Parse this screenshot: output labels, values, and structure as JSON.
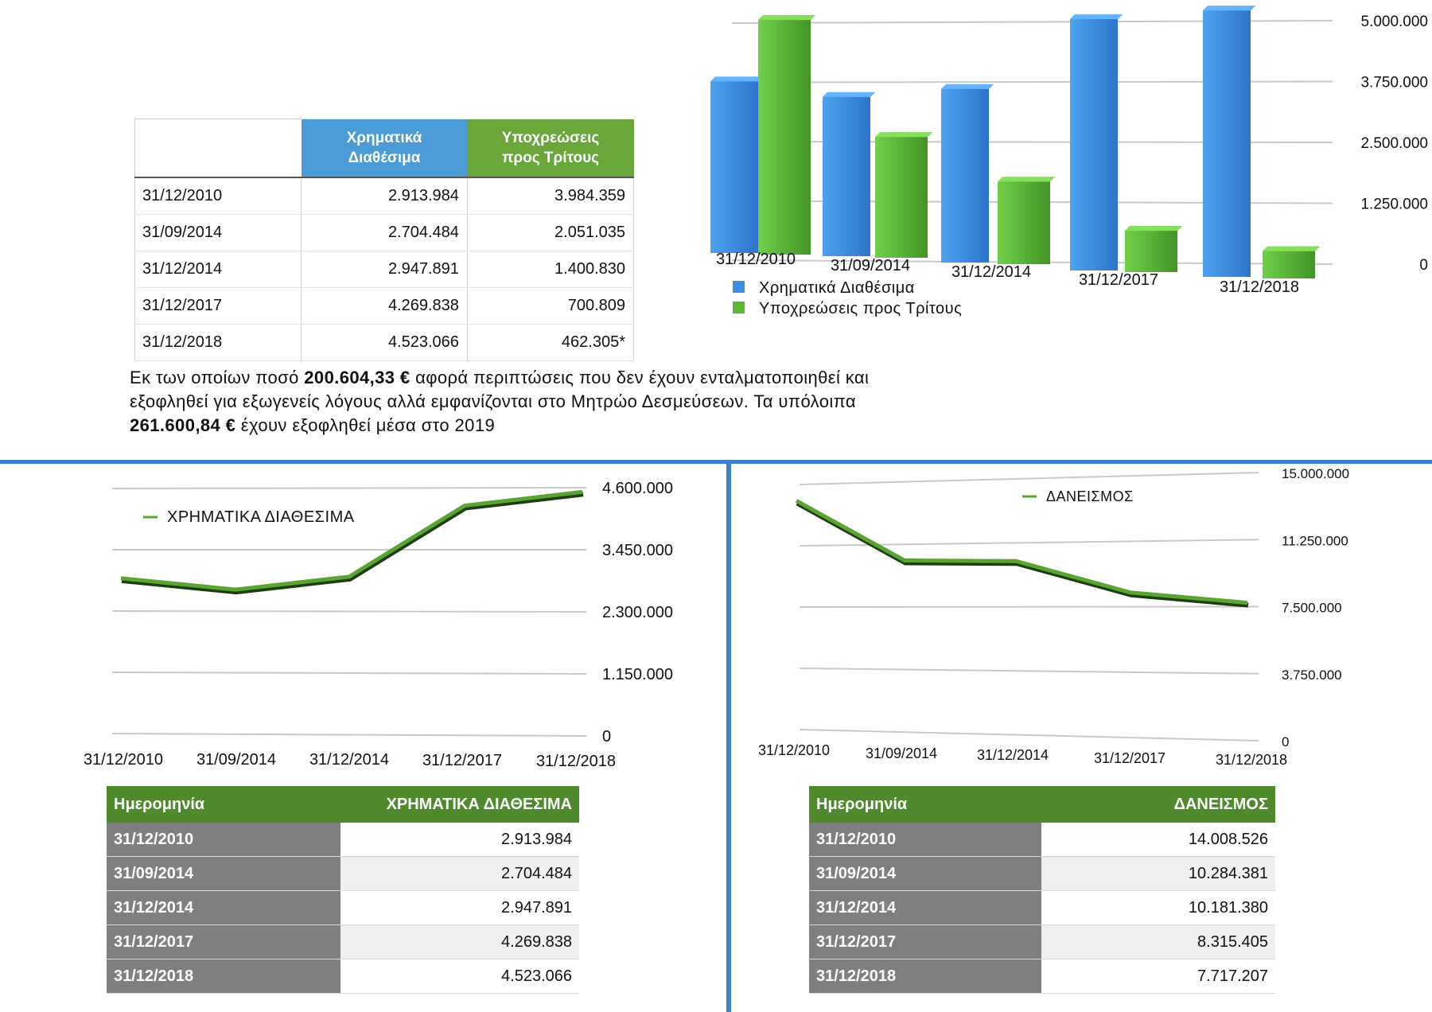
{
  "top_table": {
    "header": [
      "",
      "Χρηματικά\nΔιαθέσιμα",
      "Υποχρεώσεις\nπρος Τρίτους"
    ],
    "rows": [
      [
        "31/12/2010",
        "2.913.984",
        "3.984.359"
      ],
      [
        "31/09/2014",
        "2.704.484",
        "2.051.035"
      ],
      [
        "31/12/2014",
        "2.947.891",
        "1.400.830"
      ],
      [
        "31/12/2017",
        "4.269.838",
        "700.809"
      ],
      [
        "31/12/2018",
        "4.523.066",
        "462.305*"
      ]
    ]
  },
  "note": {
    "t1": "Εκ των οποίων ποσό ",
    "b1": "200.604,33 €",
    "t2": " αφορά περιπτώσεις που δεν έχουν ενταλματοποιηθεί και εξοφληθεί για εξωγενείς λόγους αλλά εμφανίζονται στο Μητρώο Δεσμεύσεων. Τα υπόλοιπα ",
    "b2": "261.600,84 €",
    "t3": " έχουν εξοφληθεί μέσα στο 2019"
  },
  "bottom_left_table": {
    "headers": [
      "Ημερομηνία",
      "ΧΡΗΜΑΤΙΚΑ ΔΙΑΘΕΣΙΜΑ"
    ],
    "rows": [
      [
        "31/12/2010",
        "2.913.984"
      ],
      [
        "31/09/2014",
        "2.704.484"
      ],
      [
        "31/12/2014",
        "2.947.891"
      ],
      [
        "31/12/2017",
        "4.269.838"
      ],
      [
        "31/12/2018",
        "4.523.066"
      ]
    ]
  },
  "bottom_right_table": {
    "headers": [
      "Ημερομηνία",
      "ΔΑΝΕΙΣΜΟΣ"
    ],
    "rows": [
      [
        "31/12/2010",
        "14.008.526"
      ],
      [
        "31/09/2014",
        "10.284.381"
      ],
      [
        "31/12/2014",
        "10.181.380"
      ],
      [
        "31/12/2017",
        "8.315.405"
      ],
      [
        "31/12/2018",
        "7.717.207"
      ]
    ]
  },
  "colors": {
    "blue": "#3f7fd0",
    "green": "#5aa531",
    "dark_green": "#4e8a2c",
    "gray": "#7f7f7f"
  },
  "chart_data": [
    {
      "type": "bar",
      "categories": [
        "31/12/2010",
        "31/09/2014",
        "31/12/2014",
        "31/12/2017",
        "31/12/2018"
      ],
      "series": [
        {
          "name": "Χρηματικά Διαθέσιμα",
          "values": [
            2913984,
            2704484,
            2947891,
            4269838,
            4523066
          ],
          "color": "#3d8ee0"
        },
        {
          "name": "Υποχρεώσεις προς Τρίτους",
          "values": [
            3984359,
            2051035,
            1400830,
            700809,
            462305
          ],
          "color": "#5cb833"
        }
      ],
      "yticks": [
        "0",
        "1.250.000",
        "2.500.000",
        "3.750.000",
        "5.000.000"
      ],
      "ylim": [
        0,
        5000000
      ],
      "legend": "bottom-left"
    },
    {
      "type": "line",
      "categories": [
        "31/12/2010",
        "31/09/2014",
        "31/12/2014",
        "31/12/2017",
        "31/12/2018"
      ],
      "series": [
        {
          "name": "ΧΡΗΜΑΤΙΚΑ ΔΙΑΘΕΣΙΜΑ",
          "values": [
            2913984,
            2704484,
            2947891,
            4269838,
            4523066
          ],
          "color": "#5aa531"
        }
      ],
      "yticks": [
        "0",
        "1.150.000",
        "2.300.000",
        "3.450.000",
        "4.600.000"
      ],
      "ylim": [
        0,
        4600000
      ],
      "legend": "top-left"
    },
    {
      "type": "line",
      "categories": [
        "31/12/2010",
        "31/09/2014",
        "31/12/2014",
        "31/12/2017",
        "31/12/2018"
      ],
      "series": [
        {
          "name": "ΔΑΝΕΙΣΜΟΣ",
          "values": [
            14008526,
            10284381,
            10181380,
            8315405,
            7717207
          ],
          "color": "#5aa531"
        }
      ],
      "yticks": [
        "0",
        "3.750.000",
        "7.500.000",
        "11.250.000",
        "15.000.000"
      ],
      "ylim": [
        0,
        15000000
      ],
      "legend": "top-center"
    }
  ]
}
